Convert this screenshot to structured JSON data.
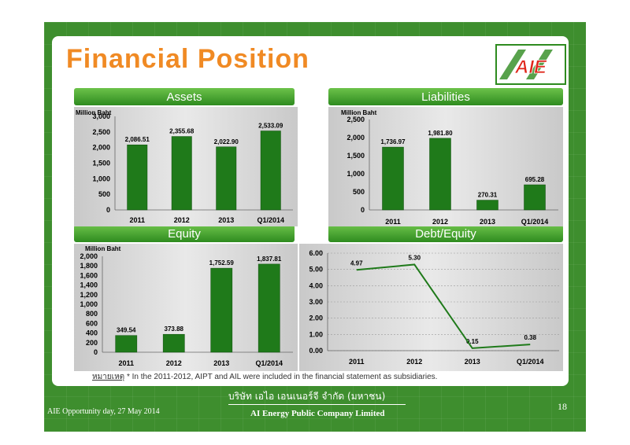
{
  "title": "Financial Position",
  "logo_text": "AIE",
  "note": {
    "prefix": "หมายเหตุ",
    "text": " * In the 2011-2012, AIPT and AIL were included in the financial statement as subsidiaries."
  },
  "footer": {
    "left": "AIE Opportunity day, 27 May 2014",
    "company_th": "บริษัท เอไอ เอนเนอร์จี จำกัด (มหาชน)",
    "company_en": "AI Energy Public Company Limited",
    "page": "18"
  },
  "colors": {
    "orange": "#f08a24",
    "green_dark": "#1f7a1a",
    "green_bg": "#3e8e2e"
  },
  "chart_data": [
    {
      "id": "assets",
      "type": "bar",
      "title": "Assets",
      "ylabel": "Million Baht",
      "categories": [
        "2011",
        "2012",
        "2013",
        "Q1/2014"
      ],
      "values": [
        2086.51,
        2355.68,
        2022.9,
        2533.09
      ],
      "labels": [
        "2,086.51",
        "2,355.68",
        "2,022.90",
        "2,533.09"
      ],
      "ylim": [
        0,
        3000
      ],
      "yticks": [
        0,
        500,
        1000,
        1500,
        2000,
        2500,
        3000
      ],
      "ytick_labels": [
        "0",
        "500",
        "1,000",
        "1,500",
        "2,000",
        "2,500",
        "3,000"
      ]
    },
    {
      "id": "liabilities",
      "type": "bar",
      "title": "Liabilities",
      "ylabel": "Million Baht",
      "categories": [
        "2011",
        "2012",
        "2013",
        "Q1/2014"
      ],
      "values": [
        1736.97,
        1981.8,
        270.31,
        695.28
      ],
      "labels": [
        "1,736.97",
        "1,981.80",
        "270.31",
        "695.28"
      ],
      "ylim": [
        0,
        2500
      ],
      "yticks": [
        0,
        500,
        1000,
        1500,
        2000,
        2500
      ],
      "ytick_labels": [
        "0",
        "500",
        "1,000",
        "1,500",
        "2,000",
        "2,500"
      ]
    },
    {
      "id": "equity",
      "type": "bar",
      "title": "Equity",
      "ylabel": "Million Baht",
      "categories": [
        "2011",
        "2012",
        "2013",
        "Q1/2014"
      ],
      "values": [
        349.54,
        373.88,
        1752.59,
        1837.81
      ],
      "labels": [
        "349.54",
        "373.88",
        "1,752.59",
        "1,837.81"
      ],
      "ylim": [
        0,
        2000
      ],
      "yticks": [
        0,
        200,
        400,
        600,
        800,
        1000,
        1200,
        1400,
        1600,
        1800,
        2000
      ],
      "ytick_labels": [
        "0",
        "200",
        "400",
        "600",
        "800",
        "1,000",
        "1,200",
        "1,400",
        "1,600",
        "1,800",
        "2,000"
      ]
    },
    {
      "id": "debt_equity",
      "type": "line",
      "title": "Debt/Equity",
      "ylabel": "",
      "categories": [
        "2011",
        "2012",
        "2013",
        "Q1/2014"
      ],
      "values": [
        4.97,
        5.3,
        0.15,
        0.38
      ],
      "labels": [
        "4.97",
        "5.30",
        "0.15",
        "0.38"
      ],
      "ylim": [
        0,
        6
      ],
      "yticks": [
        0,
        1,
        2,
        3,
        4,
        5,
        6
      ],
      "ytick_labels": [
        "0.00",
        "1.00",
        "2.00",
        "3.00",
        "4.00",
        "5.00",
        "6.00"
      ]
    }
  ]
}
